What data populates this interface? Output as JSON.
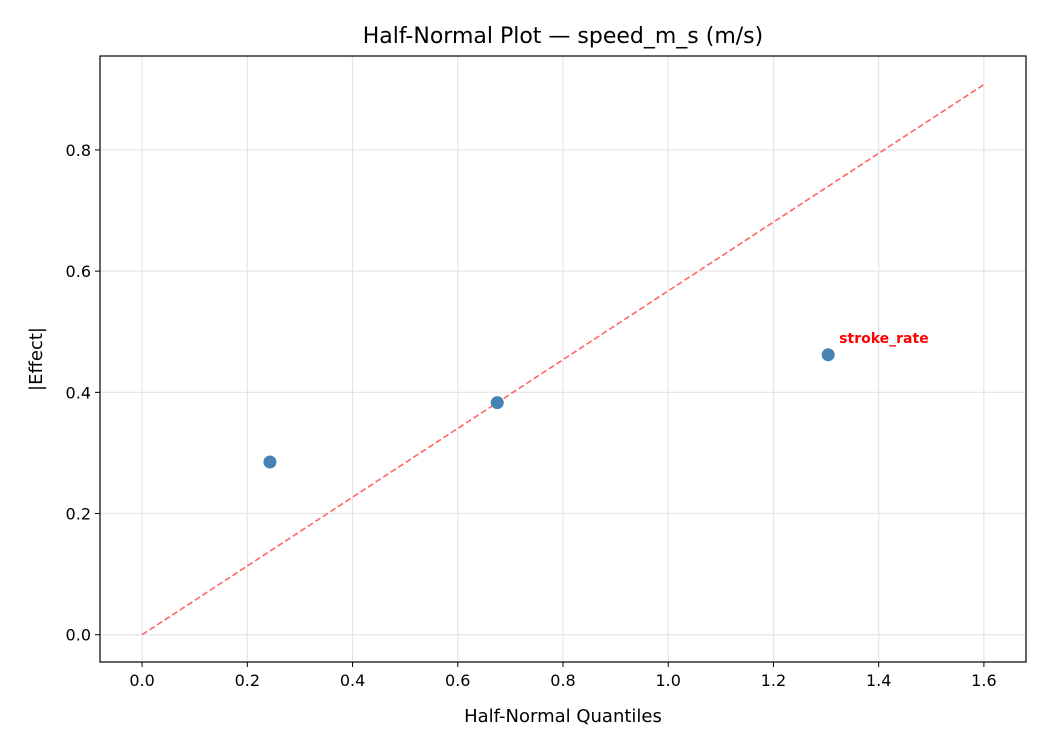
{
  "chart_data": {
    "type": "scatter",
    "title": "Half-Normal Plot — speed_m_s (m/s)",
    "xlabel": "Half-Normal Quantiles",
    "ylabel": "|Effect|",
    "xlim": [
      -0.08,
      1.68
    ],
    "ylim": [
      -0.045,
      0.955
    ],
    "xticks": [
      "0.0",
      "0.2",
      "0.4",
      "0.6",
      "0.8",
      "1.0",
      "1.2",
      "1.4",
      "1.6"
    ],
    "yticks": [
      "0.0",
      "0.2",
      "0.4",
      "0.6",
      "0.8"
    ],
    "grid": true,
    "points": [
      {
        "x": 0.243,
        "y": 0.285,
        "label": ""
      },
      {
        "x": 0.675,
        "y": 0.383,
        "label": ""
      },
      {
        "x": 1.304,
        "y": 0.462,
        "label": "stroke_rate"
      }
    ],
    "reference_line": {
      "x": [
        0.0,
        1.602
      ],
      "y": [
        0.0,
        0.909
      ],
      "style": "dashed"
    },
    "colors": {
      "points": "#4682b4",
      "reference_line": "#ff6666",
      "annotation": "#ff0000",
      "grid": "#e5e5e5"
    }
  }
}
